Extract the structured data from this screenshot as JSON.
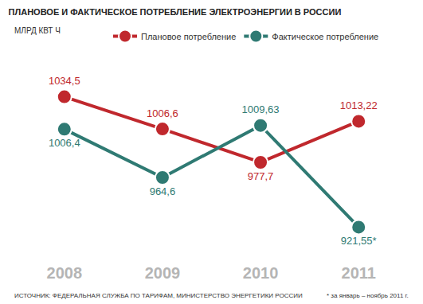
{
  "chart_data": {
    "type": "line",
    "title": "ПЛАНОВОЕ И ФАКТИЧЕСКОЕ ПОТРЕБЛЕНИЕ ЭЛЕКТРОЭНЕРГИИ В РОССИИ",
    "subtitle": "МЛРД КВТ Ч",
    "categories": [
      "2008",
      "2009",
      "2010",
      "2011"
    ],
    "series": [
      {
        "name": "Плановое потребление",
        "color": "#c0282d",
        "values": [
          1034.5,
          1006.6,
          977.7,
          1013.22
        ],
        "value_labels": [
          "1034,5",
          "1006,6",
          "977,7",
          "1013,22"
        ]
      },
      {
        "name": "Фактическое потребление",
        "color": "#2f7a73",
        "values": [
          1006.4,
          964.6,
          1009.63,
          921.55
        ],
        "value_labels": [
          "1006,4",
          "964,6",
          "1009,63",
          "921,55*"
        ]
      }
    ],
    "data_labels": true,
    "tick_labels": "x",
    "grid": false,
    "legend": "top right",
    "marker": "circle",
    "line_style": "solid",
    "annotations": [
      "ИСТОЧНИК: ФЕДЕРАЛЬНАЯ СЛУЖБА ПО ТАРИФАМ, МИНИСТЕРСТВО ЭНЕРГЕТИКИ РОССИИ",
      "* за январь – ноябрь 2011 г."
    ]
  }
}
